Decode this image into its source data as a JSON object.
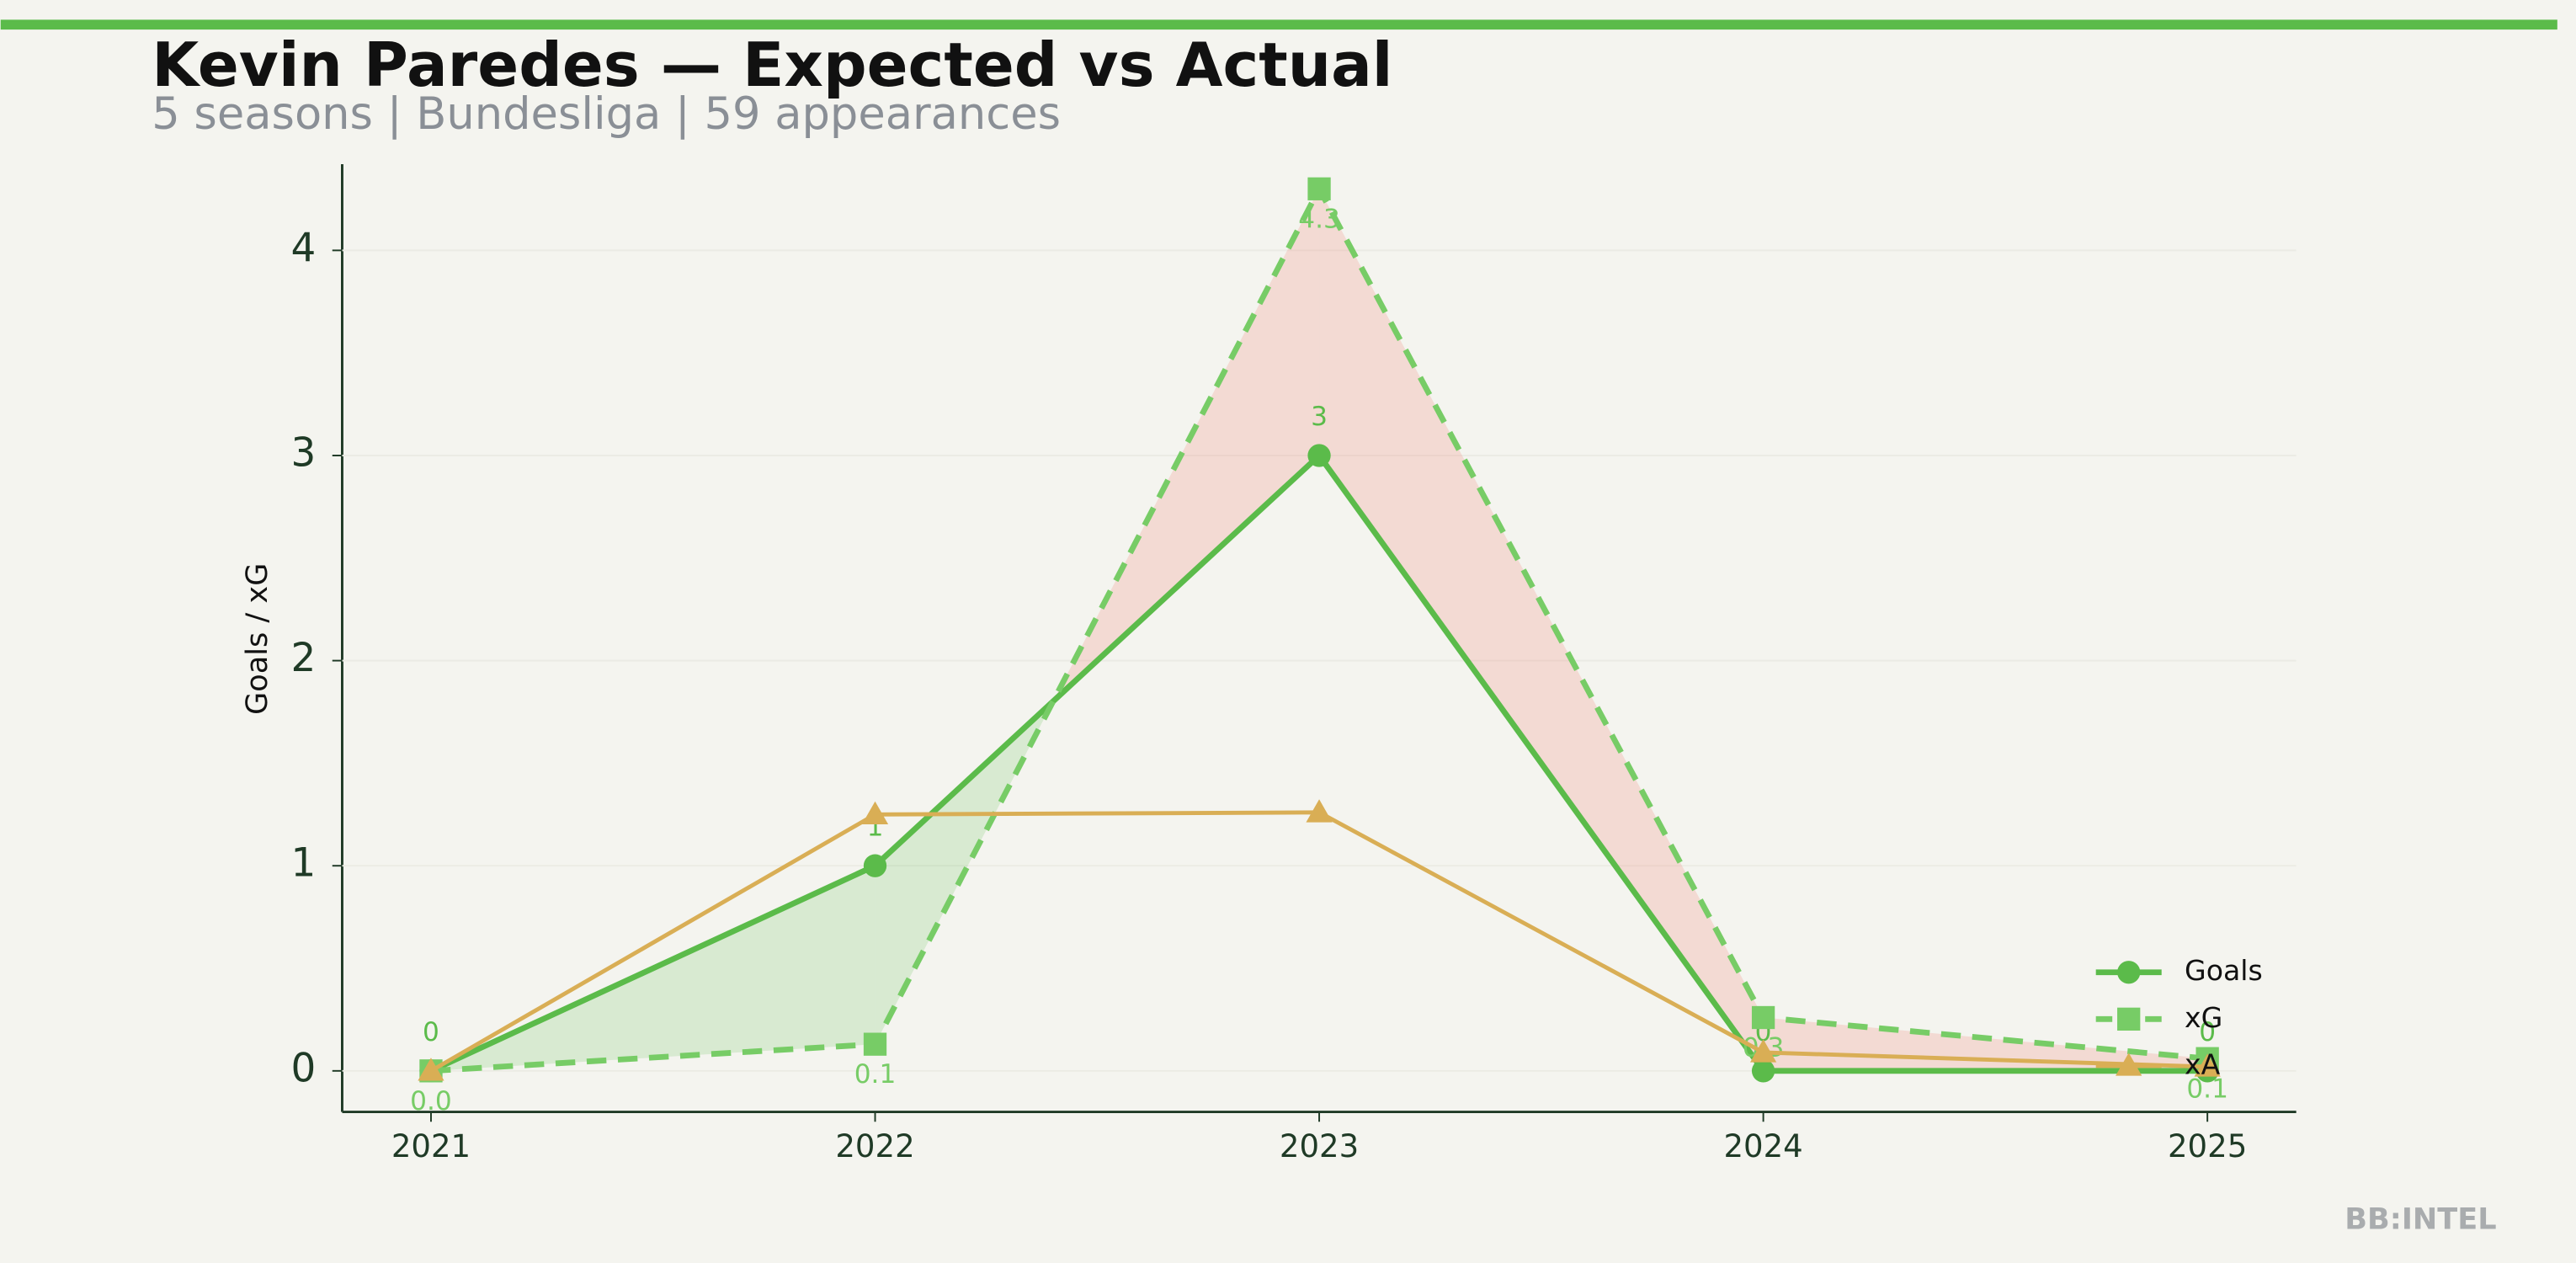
{
  "chart_data": {
    "type": "line",
    "title": "Kevin Paredes — Expected vs Actual",
    "subtitle": "5 seasons | Bundesliga | 59 appearances",
    "ylabel": "Goals / xG",
    "source": "BB:INTEL",
    "x": [
      2021,
      2022,
      2023,
      2024,
      2025
    ],
    "xlim": [
      2020.8,
      2025.2
    ],
    "xticks": [
      2021,
      2022,
      2023,
      2024,
      2025
    ],
    "ylim": [
      -0.2,
      4.42
    ],
    "yticks": [
      0,
      1,
      2,
      3,
      4
    ],
    "legend": "lower right",
    "series": [
      {
        "name": "Goals",
        "color": "#5bbb4a",
        "values": [
          0,
          1,
          3,
          0,
          0
        ],
        "value_labels": [
          "0",
          "1",
          "3",
          "0",
          "0"
        ]
      },
      {
        "name": "xG",
        "color": "#77cc66",
        "values": [
          0.0,
          0.13,
          4.3,
          0.26,
          0.06
        ],
        "value_labels": [
          "0.0",
          "0.1",
          "4.3",
          "0.3",
          "0.1"
        ]
      },
      {
        "name": "xA",
        "color": "#d9ae55",
        "values": [
          0,
          1.25,
          1.26,
          0.09,
          0.02
        ]
      }
    ]
  }
}
